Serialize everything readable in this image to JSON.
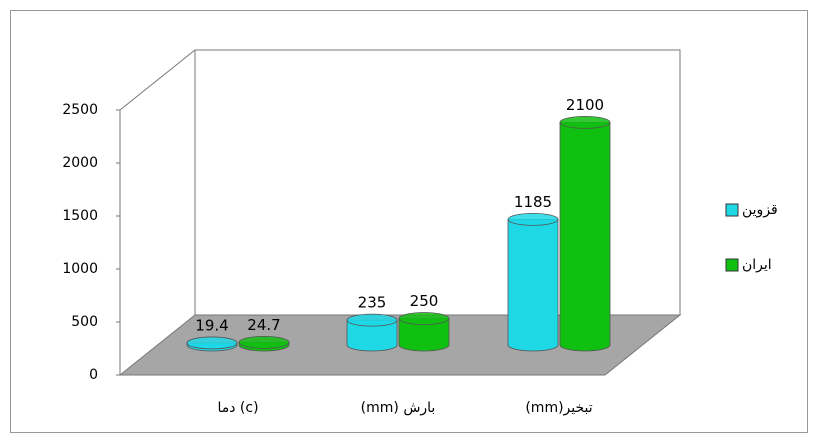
{
  "chart_data": {
    "type": "cylinder",
    "categories": [
      "دما (c)",
      "(mm) بارش",
      "(mm)تبخیر"
    ],
    "series": [
      {
        "name": "قزوین",
        "color": "#1fd8e6",
        "values": [
          19.4,
          235,
          1185
        ]
      },
      {
        "name": "ایران",
        "color": "#10c010",
        "values": [
          24.7,
          250,
          2100
        ]
      }
    ],
    "ylim": [
      0,
      2500
    ],
    "yticks": [
      0,
      500,
      1000,
      1500,
      2000,
      2500
    ],
    "legend": "right"
  }
}
